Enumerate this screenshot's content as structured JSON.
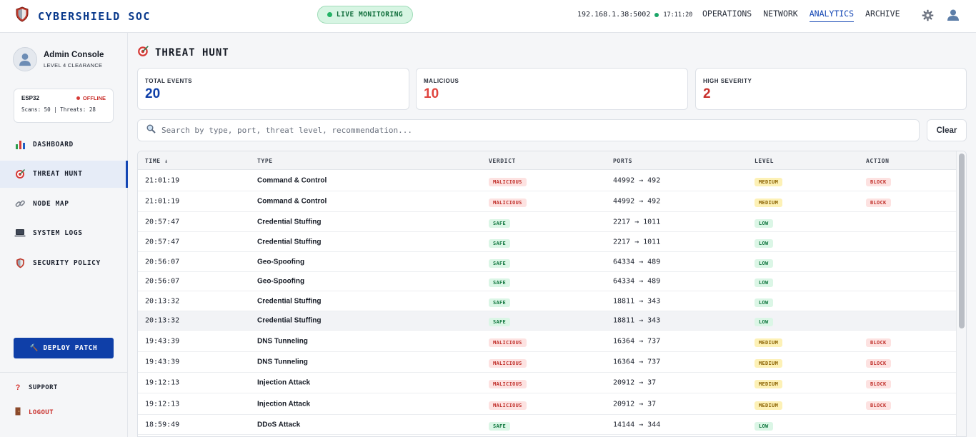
{
  "header": {
    "brand": "CYBERSHIELD SOC",
    "live_label": "LIVE MONITORING",
    "host": "192.168.1.38:5002",
    "clock": "17:11:20",
    "nav": [
      {
        "label": "OPERATIONS",
        "active": false
      },
      {
        "label": "NETWORK",
        "active": false
      },
      {
        "label": "ANALYTICS",
        "active": true
      },
      {
        "label": "ARCHIVE",
        "active": false
      }
    ],
    "icons": [
      "shield-logo-icon",
      "gear-icon",
      "user-icon"
    ]
  },
  "sidebar": {
    "profile_name": "Admin Console",
    "profile_sub": "LEVEL 4 CLEARANCE",
    "device": {
      "name": "ESP32",
      "status": "OFFLINE",
      "stats": "Scans: 50 | Threats: 28"
    },
    "items": [
      {
        "label": "DASHBOARD",
        "icon": "bar-chart-icon",
        "active": false
      },
      {
        "label": "THREAT HUNT",
        "icon": "target-icon",
        "active": true
      },
      {
        "label": "NODE MAP",
        "icon": "link-icon",
        "active": false
      },
      {
        "label": "SYSTEM LOGS",
        "icon": "laptop-icon",
        "active": false
      },
      {
        "label": "SECURITY POLICY",
        "icon": "shield-icon",
        "active": false
      }
    ],
    "deploy_label": "🔨 DEPLOY PATCH",
    "support_label": "SUPPORT",
    "logout_label": "LOGOUT"
  },
  "main": {
    "title": "THREAT HUNT",
    "stats": [
      {
        "label": "TOTAL EVENTS",
        "value": "20",
        "color": "#0f3fa8"
      },
      {
        "label": "MALICIOUS",
        "value": "10",
        "color": "#e0443e"
      },
      {
        "label": "HIGH SEVERITY",
        "value": "2",
        "color": "#c9302c"
      }
    ],
    "search": {
      "placeholder": "Search by type, port, threat level, recommendation...",
      "value": ""
    },
    "clear_label": "Clear",
    "table": {
      "columns": [
        "TIME ↓",
        "TYPE",
        "VERDICT",
        "PORTS",
        "LEVEL",
        "ACTION"
      ],
      "rows": [
        {
          "time": "21:01:19",
          "type": "Command & Control",
          "verdict": "MALICIOUS",
          "ports": "44992 → 492",
          "level": "MEDIUM",
          "action": "BLOCK"
        },
        {
          "time": "21:01:19",
          "type": "Command & Control",
          "verdict": "MALICIOUS",
          "ports": "44992 → 492",
          "level": "MEDIUM",
          "action": "BLOCK"
        },
        {
          "time": "20:57:47",
          "type": "Credential Stuffing",
          "verdict": "SAFE",
          "ports": "2217 → 1011",
          "level": "LOW",
          "action": ""
        },
        {
          "time": "20:57:47",
          "type": "Credential Stuffing",
          "verdict": "SAFE",
          "ports": "2217 → 1011",
          "level": "LOW",
          "action": ""
        },
        {
          "time": "20:56:07",
          "type": "Geo-Spoofing",
          "verdict": "SAFE",
          "ports": "64334 → 489",
          "level": "LOW",
          "action": ""
        },
        {
          "time": "20:56:07",
          "type": "Geo-Spoofing",
          "verdict": "SAFE",
          "ports": "64334 → 489",
          "level": "LOW",
          "action": ""
        },
        {
          "time": "20:13:32",
          "type": "Credential Stuffing",
          "verdict": "SAFE",
          "ports": "18811 → 343",
          "level": "LOW",
          "action": ""
        },
        {
          "time": "20:13:32",
          "type": "Credential Stuffing",
          "verdict": "SAFE",
          "ports": "18811 → 343",
          "level": "LOW",
          "action": ""
        },
        {
          "time": "19:43:39",
          "type": "DNS Tunneling",
          "verdict": "MALICIOUS",
          "ports": "16364 → 737",
          "level": "MEDIUM",
          "action": "BLOCK"
        },
        {
          "time": "19:43:39",
          "type": "DNS Tunneling",
          "verdict": "MALICIOUS",
          "ports": "16364 → 737",
          "level": "MEDIUM",
          "action": "BLOCK"
        },
        {
          "time": "19:12:13",
          "type": "Injection Attack",
          "verdict": "MALICIOUS",
          "ports": "20912 → 37",
          "level": "MEDIUM",
          "action": "BLOCK"
        },
        {
          "time": "19:12:13",
          "type": "Injection Attack",
          "verdict": "MALICIOUS",
          "ports": "20912 → 37",
          "level": "MEDIUM",
          "action": "BLOCK"
        },
        {
          "time": "18:59:49",
          "type": "DDoS Attack",
          "verdict": "SAFE",
          "ports": "14144 → 344",
          "level": "LOW",
          "action": ""
        }
      ]
    }
  }
}
